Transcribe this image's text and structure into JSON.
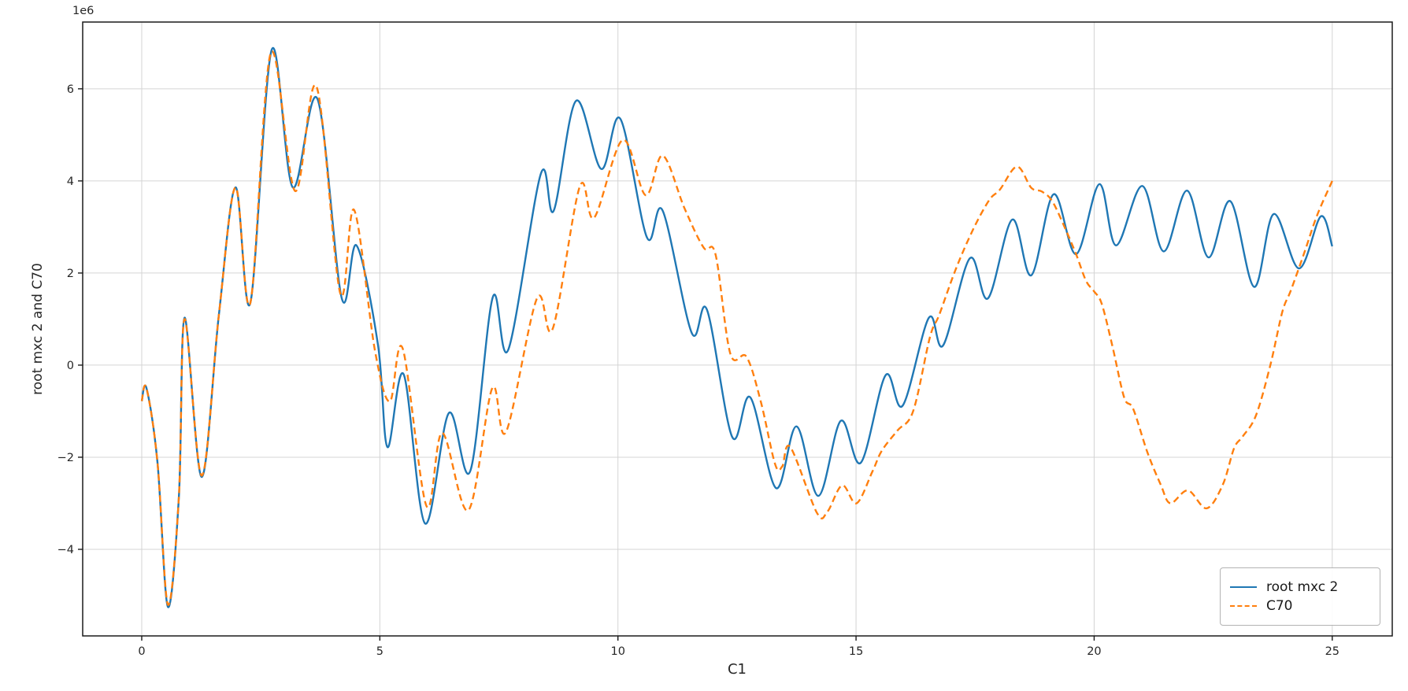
{
  "chart_data": {
    "type": "line",
    "title": "",
    "xlabel": "C1",
    "ylabel": "root mxc 2 and C70",
    "y_offset_label": "1e6",
    "y_unit_multiplier": 1000000,
    "xlim": [
      -1.24,
      26.26
    ],
    "ylim": [
      -5.88,
      7.45
    ],
    "grid": true,
    "legend_position": "lower right",
    "axis_color": "#1a1a1a",
    "grid_color": "#d4d4d4",
    "xticks": [
      {
        "v": 0,
        "label": "0"
      },
      {
        "v": 5,
        "label": "5"
      },
      {
        "v": 10,
        "label": "10"
      },
      {
        "v": 15,
        "label": "15"
      },
      {
        "v": 20,
        "label": "20"
      },
      {
        "v": 25,
        "label": "25"
      }
    ],
    "yticks": [
      {
        "v": -4,
        "label": "−4"
      },
      {
        "v": -2,
        "label": "−2"
      },
      {
        "v": 0,
        "label": "0"
      },
      {
        "v": 2,
        "label": "2"
      },
      {
        "v": 4,
        "label": "4"
      },
      {
        "v": 6,
        "label": "6"
      }
    ],
    "series": [
      {
        "name": "root mxc 2",
        "color": "#1f77b4",
        "style": "solid",
        "points": [
          [
            0,
            -0.78
          ],
          [
            0.1,
            -0.5
          ],
          [
            0.33,
            -2.1
          ],
          [
            0.55,
            -5.25
          ],
          [
            0.78,
            -2.85
          ],
          [
            0.9,
            1.03
          ],
          [
            1.26,
            -2.43
          ],
          [
            1.62,
            1.1
          ],
          [
            1.97,
            3.86
          ],
          [
            2.28,
            1.35
          ],
          [
            2.73,
            6.85
          ],
          [
            3.17,
            3.86
          ],
          [
            3.69,
            5.78
          ],
          [
            4.2,
            1.45
          ],
          [
            4.51,
            2.6
          ],
          [
            4.96,
            0.45
          ],
          [
            5.16,
            -1.78
          ],
          [
            5.5,
            -0.2
          ],
          [
            5.95,
            -3.44
          ],
          [
            6.45,
            -1.04
          ],
          [
            6.9,
            -2.3
          ],
          [
            7.37,
            1.47
          ],
          [
            7.7,
            0.34
          ],
          [
            8.38,
            4.15
          ],
          [
            8.65,
            3.35
          ],
          [
            9.12,
            5.74
          ],
          [
            9.65,
            4.26
          ],
          [
            10.05,
            5.35
          ],
          [
            10.61,
            2.77
          ],
          [
            10.94,
            3.35
          ],
          [
            11.55,
            0.7
          ],
          [
            11.87,
            1.2
          ],
          [
            12.4,
            -1.56
          ],
          [
            12.78,
            -0.7
          ],
          [
            13.32,
            -2.67
          ],
          [
            13.75,
            -1.33
          ],
          [
            14.21,
            -2.84
          ],
          [
            14.68,
            -1.21
          ],
          [
            15.1,
            -2.12
          ],
          [
            15.62,
            -0.22
          ],
          [
            15.98,
            -0.88
          ],
          [
            16.53,
            1.03
          ],
          [
            16.83,
            0.43
          ],
          [
            17.39,
            2.32
          ],
          [
            17.77,
            1.45
          ],
          [
            18.28,
            3.16
          ],
          [
            18.68,
            1.95
          ],
          [
            19.15,
            3.71
          ],
          [
            19.62,
            2.41
          ],
          [
            20.11,
            3.93
          ],
          [
            20.46,
            2.6
          ],
          [
            21.01,
            3.89
          ],
          [
            21.46,
            2.47
          ],
          [
            21.95,
            3.79
          ],
          [
            22.4,
            2.34
          ],
          [
            22.86,
            3.56
          ],
          [
            23.36,
            1.7
          ],
          [
            23.77,
            3.28
          ],
          [
            24.3,
            2.1
          ],
          [
            24.76,
            3.23
          ],
          [
            25,
            2.58
          ]
        ]
      },
      {
        "name": "C70",
        "color": "#ff7f0e",
        "style": "dashed",
        "points": [
          [
            0,
            -0.78
          ],
          [
            0.1,
            -0.5
          ],
          [
            0.33,
            -2.1
          ],
          [
            0.55,
            -5.2
          ],
          [
            0.78,
            -2.85
          ],
          [
            0.9,
            1.0
          ],
          [
            1.26,
            -2.4
          ],
          [
            1.62,
            1.1
          ],
          [
            1.97,
            3.86
          ],
          [
            2.28,
            1.35
          ],
          [
            2.71,
            6.78
          ],
          [
            3.22,
            3.78
          ],
          [
            3.67,
            6.05
          ],
          [
            4.17,
            1.55
          ],
          [
            4.46,
            3.37
          ],
          [
            4.9,
            0.3
          ],
          [
            5.21,
            -0.79
          ],
          [
            5.48,
            0.36
          ],
          [
            5.98,
            -3.06
          ],
          [
            6.31,
            -1.47
          ],
          [
            6.86,
            -3.15
          ],
          [
            7.36,
            -0.5
          ],
          [
            7.65,
            -1.45
          ],
          [
            8.3,
            1.45
          ],
          [
            8.63,
            0.79
          ],
          [
            9.2,
            3.88
          ],
          [
            9.5,
            3.2
          ],
          [
            10.1,
            4.89
          ],
          [
            10.58,
            3.69
          ],
          [
            10.94,
            4.55
          ],
          [
            11.4,
            3.4
          ],
          [
            11.8,
            2.55
          ],
          [
            12.05,
            2.4
          ],
          [
            12.36,
            0.25
          ],
          [
            12.7,
            0.18
          ],
          [
            13.0,
            -0.79
          ],
          [
            13.3,
            -2.15
          ],
          [
            13.45,
            -2.2
          ],
          [
            13.62,
            -1.78
          ],
          [
            14.18,
            -3.21
          ],
          [
            14.4,
            -3.18
          ],
          [
            14.71,
            -2.61
          ],
          [
            15.01,
            -3.0
          ],
          [
            15.34,
            -2.32
          ],
          [
            15.54,
            -1.86
          ],
          [
            15.87,
            -1.42
          ],
          [
            16.2,
            -1.0
          ],
          [
            16.55,
            0.6
          ],
          [
            16.75,
            1.1
          ],
          [
            17.1,
            2.1
          ],
          [
            17.47,
            2.97
          ],
          [
            17.8,
            3.59
          ],
          [
            18.02,
            3.81
          ],
          [
            18.38,
            4.31
          ],
          [
            18.68,
            3.85
          ],
          [
            18.9,
            3.77
          ],
          [
            19.12,
            3.56
          ],
          [
            19.39,
            2.97
          ],
          [
            19.62,
            2.41
          ],
          [
            19.83,
            1.83
          ],
          [
            20.0,
            1.6
          ],
          [
            20.16,
            1.33
          ],
          [
            20.38,
            0.43
          ],
          [
            20.63,
            -0.7
          ],
          [
            20.82,
            -0.95
          ],
          [
            21.12,
            -1.9
          ],
          [
            21.4,
            -2.6
          ],
          [
            21.6,
            -3.0
          ],
          [
            21.97,
            -2.72
          ],
          [
            22.36,
            -3.11
          ],
          [
            22.7,
            -2.6
          ],
          [
            22.94,
            -1.8
          ],
          [
            23.12,
            -1.55
          ],
          [
            23.4,
            -1.09
          ],
          [
            23.7,
            0.0
          ],
          [
            23.95,
            1.15
          ],
          [
            24.13,
            1.62
          ],
          [
            24.41,
            2.43
          ],
          [
            24.68,
            3.25
          ],
          [
            25,
            4.0
          ]
        ]
      }
    ]
  }
}
